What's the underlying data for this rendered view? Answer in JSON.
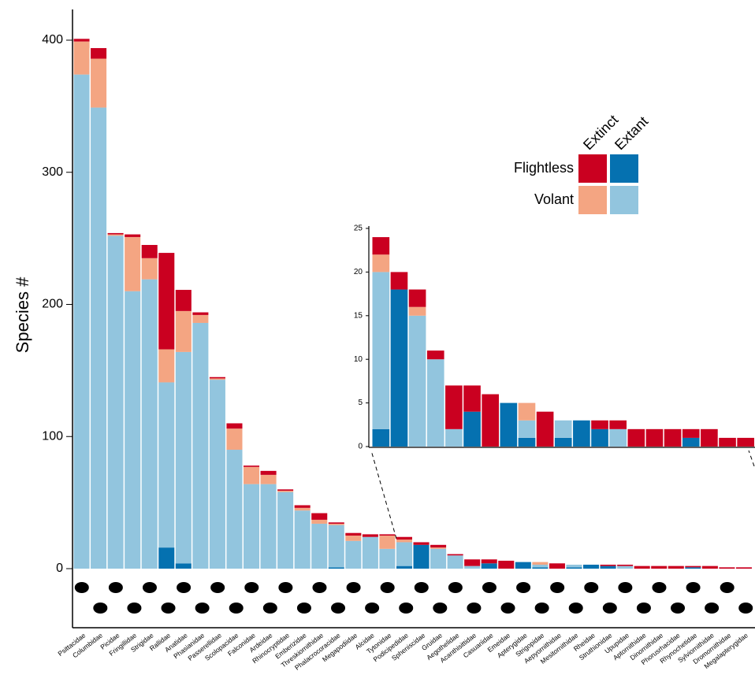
{
  "chart_data": [
    {
      "type": "stacked-bar",
      "y_label": "Species #",
      "categories": [
        "Psittacidae",
        "Columbidae",
        "Picidae",
        "Fringillidae",
        "Strigidae",
        "Rallidae",
        "Anatidae",
        "Phasianidae",
        "Passerellidae",
        "Scolopacidae",
        "Falconidae",
        "Ardeidae",
        "Rhinocryptidae",
        "Emberizidae",
        "Threskiornithidae",
        "Phalacrocoracidae",
        "Megapodiidae",
        "Alcidae",
        "Tytonidae",
        "Podicipedidae",
        "Spheniscidae",
        "Gruidae",
        "Aegothelidae",
        "Acanthisittidae",
        "Casuariidae",
        "Emeidae",
        "Apterygidae",
        "Strigopidae",
        "Aepyornithidae",
        "Mesitornithidae",
        "Rheidae",
        "Struthionidae",
        "Upupidae",
        "Aptornithidae",
        "Dinornithidae",
        "Phorusrhacidae",
        "Rhynochetidae",
        "Sylviornithidae",
        "Dromornithidae",
        "Megalapterygidae"
      ],
      "series": [
        {
          "group": "Flightless",
          "status": "Extant",
          "color": "#0571b0",
          "values": [
            0,
            0,
            0,
            0,
            0,
            16,
            4,
            0,
            0,
            0,
            0,
            0,
            0,
            0,
            0,
            1,
            0,
            0,
            0,
            2,
            18,
            0,
            0,
            0,
            4,
            0,
            5,
            1,
            0,
            1,
            3,
            2,
            0,
            0,
            0,
            0,
            1,
            0,
            0,
            0
          ]
        },
        {
          "group": "Volant",
          "status": "Extant",
          "color": "#92c5de",
          "values": [
            374,
            349,
            252,
            210,
            219,
            125,
            160,
            186,
            143,
            90,
            64,
            64,
            58,
            44,
            34,
            32,
            21,
            24,
            15,
            18,
            0,
            15,
            10,
            2,
            0,
            0,
            0,
            2,
            0,
            2,
            0,
            0,
            2,
            0,
            0,
            0,
            0,
            0,
            0,
            0
          ]
        },
        {
          "group": "Volant",
          "status": "Extinct",
          "color": "#f4a582",
          "values": [
            25,
            37,
            1,
            41,
            16,
            25,
            31,
            6,
            1,
            16,
            13,
            7,
            1,
            2,
            3,
            1,
            4,
            0,
            10,
            2,
            0,
            1,
            0,
            0,
            0,
            0,
            0,
            2,
            0,
            0,
            0,
            0,
            0,
            0,
            0,
            0,
            0,
            0,
            0,
            0
          ]
        },
        {
          "group": "Flightless",
          "status": "Extinct",
          "color": "#ca0020",
          "values": [
            2,
            8,
            1,
            2,
            10,
            73,
            16,
            2,
            1,
            4,
            1,
            3,
            1,
            2,
            5,
            1,
            2,
            2,
            1,
            2,
            2,
            2,
            1,
            5,
            3,
            6,
            0,
            0,
            4,
            0,
            0,
            1,
            1,
            2,
            2,
            2,
            1,
            2,
            1,
            1
          ]
        }
      ],
      "ylim": [
        0,
        400
      ],
      "yticks": [
        0,
        100,
        200,
        300,
        400
      ],
      "legend": {
        "rows": [
          "Flightless",
          "Volant"
        ],
        "columns": [
          "Extinct",
          "Extant"
        ]
      }
    },
    {
      "type": "stacked-bar",
      "series": [
        {
          "color": "#0571b0",
          "values": [
            2,
            18,
            0,
            0,
            0,
            4,
            0,
            5,
            1,
            0,
            1,
            3,
            2,
            0,
            0,
            0,
            0,
            1,
            0,
            0,
            0
          ]
        },
        {
          "color": "#92c5de",
          "values": [
            18,
            0,
            15,
            10,
            2,
            0,
            0,
            0,
            2,
            0,
            2,
            0,
            0,
            2,
            0,
            0,
            0,
            0,
            0,
            0,
            0
          ]
        },
        {
          "color": "#f4a582",
          "values": [
            2,
            0,
            1,
            0,
            0,
            0,
            0,
            0,
            2,
            0,
            0,
            0,
            0,
            0,
            0,
            0,
            0,
            0,
            0,
            0,
            0
          ]
        },
        {
          "color": "#ca0020",
          "values": [
            2,
            2,
            2,
            1,
            5,
            3,
            6,
            0,
            0,
            4,
            0,
            0,
            1,
            1,
            2,
            2,
            2,
            1,
            2,
            1,
            1
          ]
        }
      ],
      "ylim": [
        0,
        25
      ],
      "yticks": [
        0,
        5,
        10,
        15,
        20,
        25
      ]
    }
  ]
}
